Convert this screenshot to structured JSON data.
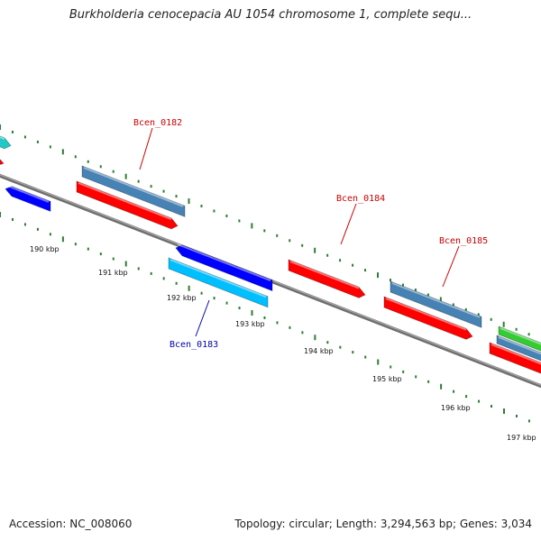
{
  "title": "Burkholderia cenocepacia AU 1054 chromosome 1, complete sequ...",
  "footer": {
    "accession": "Accession: NC_008060",
    "info": "Topology: circular; Length: 3,294,563 bp; Genes: 3,034"
  },
  "colors": {
    "backbone": "#808080",
    "dots": "#2e7d32",
    "tag_forward": "#cc0000",
    "tag_reverse": "#0000aa"
  },
  "kbp_ticks": [
    "190 kbp",
    "191 kbp",
    "192 kbp",
    "193 kbp",
    "194 kbp",
    "195 kbp",
    "196 kbp",
    "197 kbp"
  ],
  "gene_tags": [
    {
      "id": "Bcen_0182",
      "color": "#cc0000"
    },
    {
      "id": "Bcen_0183",
      "color": "#0000aa"
    },
    {
      "id": "Bcen_0184",
      "color": "#cc0000"
    },
    {
      "id": "Bcen_0185",
      "color": "#cc0000"
    }
  ],
  "feature_colors": {
    "cds_forward": "#ff0000",
    "cds_reverse": "#0000ff",
    "gene": "#4682b4",
    "cds_light": "#00bfff",
    "teal": "#20c8c8",
    "green": "#33cc33"
  }
}
